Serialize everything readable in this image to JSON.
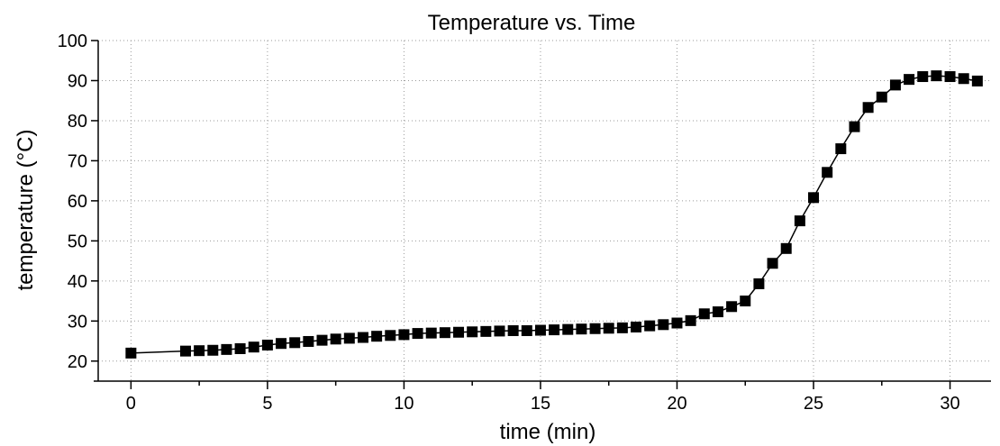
{
  "chart_data": {
    "type": "line",
    "title": "Temperature vs. Time",
    "xlabel": "time (min)",
    "ylabel": "temperature (°C)",
    "xlim": [
      -1.2,
      31.5
    ],
    "ylim": [
      15,
      100
    ],
    "x_ticks": [
      0,
      5,
      10,
      15,
      20,
      25,
      30
    ],
    "y_ticks": [
      20,
      30,
      40,
      50,
      60,
      70,
      80,
      90,
      100
    ],
    "grid": true,
    "marker": "square",
    "color": "#000000",
    "series": [
      {
        "x": [
          0,
          2,
          2.5,
          3,
          3.5,
          4,
          4.5,
          5,
          5.5,
          6,
          6.5,
          7,
          7.5,
          8,
          8.5,
          9,
          9.5,
          10,
          10.5,
          11,
          11.5,
          12,
          12.5,
          13,
          13.5,
          14,
          14.5,
          15,
          15.5,
          16,
          16.5,
          17,
          17.5,
          18,
          18.5,
          19,
          19.5,
          20,
          20.5,
          21,
          21.5,
          22,
          22.5,
          23,
          23.5,
          24,
          24.5,
          25,
          25.5,
          26,
          26.5,
          27,
          27.5,
          28,
          28.5,
          29,
          29.5,
          30,
          30.5,
          31
        ],
        "y": [
          22,
          22.5,
          22.6,
          22.7,
          22.9,
          23.1,
          23.5,
          24.0,
          24.4,
          24.6,
          24.9,
          25.2,
          25.5,
          25.7,
          25.9,
          26.2,
          26.4,
          26.6,
          26.9,
          27.0,
          27.1,
          27.2,
          27.3,
          27.4,
          27.5,
          27.6,
          27.6,
          27.7,
          27.8,
          27.9,
          28.0,
          28.1,
          28.2,
          28.3,
          28.5,
          28.8,
          29.1,
          29.5,
          30.1,
          31.8,
          32.3,
          33.6,
          35.0,
          39.3,
          44.4,
          48.1,
          55.0,
          60.8,
          67.1,
          73.0,
          78.5,
          83.3,
          85.9,
          88.9,
          90.3,
          91.0,
          91.2,
          91.0,
          90.5,
          89.9
        ]
      }
    ]
  }
}
